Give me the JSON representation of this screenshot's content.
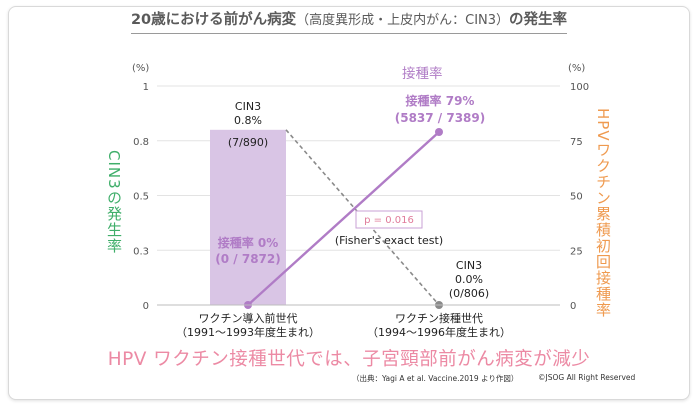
{
  "title": {
    "main": "20歳における前がん病変",
    "sub": "（高度異形成・上皮内がん：CIN3）",
    "suffix": "の発生率"
  },
  "left_axis": {
    "label": "CIN3の発生率",
    "unit": "(%)",
    "ticks": [
      "1",
      "0.8",
      "0.5",
      "0.3",
      "0"
    ],
    "tick_values": [
      1,
      0.75,
      0.5,
      0.25,
      0
    ],
    "color": "#3fae6a"
  },
  "right_axis": {
    "label": "HPVワクチン累積初回接種率",
    "unit": "(%)",
    "ticks": [
      "100",
      "75",
      "50",
      "25",
      "0"
    ],
    "tick_values": [
      100,
      75,
      50,
      25,
      0
    ],
    "color": "#ef9a4f"
  },
  "chart_data": {
    "type": "bar",
    "categories": [
      "ワクチン導入前世代\n（1991〜1993年度生まれ）",
      "ワクチン接種世代\n（1994〜1996年度生まれ）"
    ],
    "series": [
      {
        "name": "CIN3",
        "axis": "left",
        "values": [
          0.8,
          0.0
        ],
        "labels": [
          [
            "CIN3",
            "0.8%",
            "(7/890)"
          ],
          [
            "CIN3",
            "0.0%",
            "(0/806)"
          ]
        ],
        "color": "#d9c5e5"
      },
      {
        "name": "接種率",
        "type": "line",
        "axis": "right",
        "values": [
          0,
          79
        ],
        "labels": [
          [
            "接種率 0%",
            "(0 / 7872)"
          ],
          [
            "接種率 79%",
            "(5837 / 7389)"
          ]
        ],
        "color": "#b07cc6"
      }
    ],
    "ylim_left": [
      0,
      1
    ],
    "ylim_right": [
      0,
      100
    ],
    "annotation": {
      "p_value": "p = 0.016",
      "test": "(Fisher's exact test)"
    }
  },
  "headline": "HPV ワクチン接種世代では、子宮頸部前がん病変が減少",
  "source": "（出典：Yagi A et al. Vaccine.2019 より作図）",
  "copyright": "©JSOG All Right Reserved"
}
